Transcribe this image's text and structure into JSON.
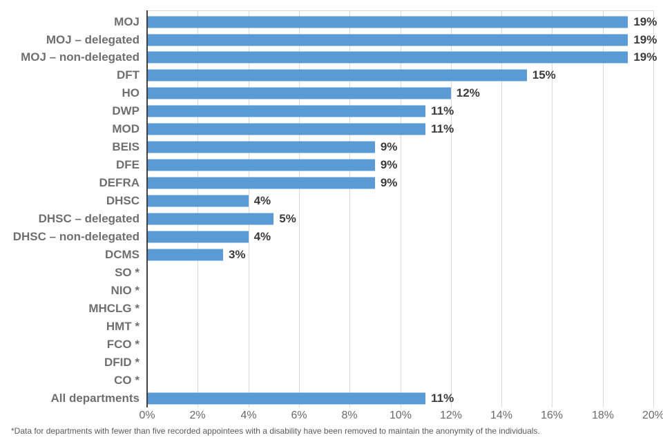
{
  "chart_data": {
    "type": "bar",
    "orientation": "horizontal",
    "title": "",
    "xlabel": "",
    "ylabel": "",
    "xlim": [
      0,
      20
    ],
    "grid": true,
    "legend": false,
    "bar_color": "#5B9BD5",
    "categories": [
      "MOJ",
      "MOJ – delegated",
      "MOJ – non-delegated",
      "DFT",
      "HO",
      "DWP",
      "MOD",
      "BEIS",
      "DFE",
      "DEFRA",
      "DHSC",
      "DHSC – delegated",
      "DHSC – non-delegated",
      "DCMS",
      "SO *",
      "NIO *",
      "MHCLG *",
      "HMT *",
      "FCO *",
      "DFID *",
      "CO *",
      "All departments"
    ],
    "values": [
      19,
      19,
      19,
      15,
      12,
      11,
      11,
      9,
      9,
      9,
      4,
      5,
      4,
      3,
      null,
      null,
      null,
      null,
      null,
      null,
      null,
      11
    ],
    "value_labels": [
      "19%",
      "19%",
      "19%",
      "15%",
      "12%",
      "11%",
      "11%",
      "9%",
      "9%",
      "9%",
      "4%",
      "5%",
      "4%",
      "3%",
      "",
      "",
      "",
      "",
      "",
      "",
      "",
      "11%"
    ],
    "x_tick_values": [
      0,
      2,
      4,
      6,
      8,
      10,
      12,
      14,
      16,
      18,
      20
    ],
    "x_tick_labels": [
      "0%",
      "2%",
      "4%",
      "6%",
      "8%",
      "10%",
      "12%",
      "14%",
      "16%",
      "18%",
      "20%"
    ]
  },
  "footnote": "*Data for departments with fewer than five recorded appointees with a disability have been removed to maintain the anonymity of the individuals."
}
